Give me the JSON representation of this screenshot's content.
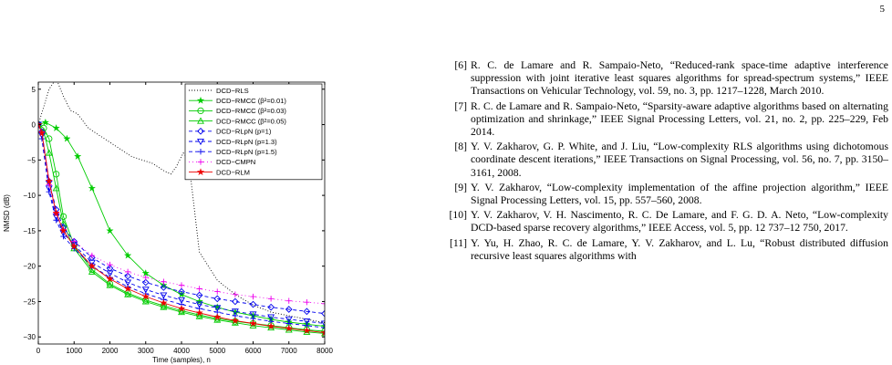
{
  "page_number": "5",
  "references": [
    {
      "num": "[6]",
      "text": "R. C. de Lamare and R. Sampaio-Neto, “Reduced-rank space-time adaptive interference suppression with joint iterative least squares algorithms for spread-spectrum systems,” IEEE Transactions on Vehicular Technology, vol. 59, no. 3, pp. 1217–1228, March 2010."
    },
    {
      "num": "[7]",
      "text": "R. C. de Lamare and R. Sampaio-Neto, “Sparsity-aware adaptive algorithms based on alternating optimization and shrinkage,” IEEE Signal Processing Letters, vol. 21, no. 2, pp. 225–229, Feb 2014."
    },
    {
      "num": "[8]",
      "text": "Y. V. Zakharov, G. P. White, and J. Liu, “Low-complexity RLS algorithms using dichotomous coordinate descent iterations,” IEEE Transactions on Signal Processing, vol. 56, no. 7, pp. 3150–3161, 2008."
    },
    {
      "num": "[9]",
      "text": "Y. V. Zakharov, “Low-complexity implementation of the affine projection algorithm,” IEEE Signal Processing Letters, vol. 15, pp. 557–560, 2008."
    },
    {
      "num": "[10]",
      "text": "Y. V. Zakharov, V. H. Nascimento, R. C. De Lamare, and F. G. D. A. Neto, “Low-complexity DCD-based sparse recovery algorithms,” IEEE Access, vol. 5, pp. 12 737–12 750, 2017."
    },
    {
      "num": "[11]",
      "text": "Y. Yu, H. Zhao, R. C. de Lamare, Y. V. Zakharov, and L. Lu, “Robust distributed diffusion recursive least squares algorithms with"
    }
  ],
  "chart_data": {
    "type": "line",
    "xlabel": "Time (samples), n",
    "ylabel": "NMSD (dB)",
    "xlim": [
      0,
      8000
    ],
    "ylim": [
      -31,
      6
    ],
    "xticks": [
      0,
      1000,
      2000,
      3000,
      4000,
      5000,
      6000,
      7000,
      8000
    ],
    "yticks": [
      5,
      0,
      -5,
      -10,
      -15,
      -20,
      -25,
      -30
    ],
    "grid": false,
    "legend_position": "top-right",
    "series": [
      {
        "name": "DCD−RLS",
        "color": "#000000",
        "dash": "1,2",
        "marker": "none",
        "x": [
          0,
          300,
          500,
          700,
          900,
          1100,
          1400,
          1700,
          2000,
          2300,
          2600,
          2900,
          3200,
          3500,
          3700,
          3850,
          3950,
          4050,
          4200,
          4500,
          5000,
          5500,
          6000,
          6500,
          7000,
          7500,
          8000
        ],
        "y": [
          0,
          5,
          6.5,
          4,
          2,
          1.5,
          -0.5,
          -1.5,
          -2.5,
          -3.5,
          -4.5,
          -5,
          -5.5,
          -6.5,
          -7,
          -6,
          -5,
          -4,
          -5,
          -18,
          -22,
          -24,
          -25.5,
          -26.5,
          -27,
          -27.5,
          -28
        ]
      },
      {
        "name": "DCD−RMCC (β²=0.01)",
        "color": "#00cc00",
        "dash": "",
        "marker": "star",
        "x": [
          0,
          200,
          500,
          800,
          1100,
          1500,
          2000,
          2500,
          3000,
          3500,
          4000,
          4500,
          5000,
          5500,
          6000,
          6500,
          7000,
          7500,
          8000
        ],
        "y": [
          0,
          0.3,
          -0.5,
          -2,
          -4.5,
          -9,
          -15,
          -18.5,
          -21,
          -22.7,
          -24,
          -25,
          -25.8,
          -26.5,
          -27,
          -27.5,
          -27.9,
          -28.2,
          -28.5
        ]
      },
      {
        "name": "DCD−RMCC (β²=0.03)",
        "color": "#00cc00",
        "dash": "",
        "marker": "circle",
        "x": [
          0,
          150,
          300,
          500,
          700,
          1000,
          1500,
          2000,
          2500,
          3000,
          3500,
          4000,
          4500,
          5000,
          5500,
          6000,
          6500,
          7000,
          7500,
          8000
        ],
        "y": [
          0,
          -0.5,
          -2,
          -7,
          -13,
          -17,
          -20.5,
          -22.5,
          -23.8,
          -24.8,
          -25.6,
          -26.3,
          -26.9,
          -27.4,
          -27.8,
          -28.1,
          -28.4,
          -28.7,
          -29,
          -29.2
        ]
      },
      {
        "name": "DCD−RMCC (β²=0.05)",
        "color": "#00cc00",
        "dash": "",
        "marker": "triangle",
        "x": [
          0,
          150,
          300,
          500,
          700,
          1000,
          1500,
          2000,
          2500,
          3000,
          3500,
          4000,
          4500,
          5000,
          5500,
          6000,
          6500,
          7000,
          7500,
          8000
        ],
        "y": [
          0,
          -1,
          -4,
          -9,
          -14,
          -17.5,
          -20.8,
          -22.7,
          -24,
          -25,
          -25.8,
          -26.5,
          -27.1,
          -27.6,
          -28,
          -28.4,
          -28.7,
          -29,
          -29.3,
          -29.5
        ]
      },
      {
        "name": "DCD−RLpN (p=1)",
        "color": "#0000ee",
        "dash": "4,3",
        "marker": "diamond",
        "x": [
          0,
          100,
          300,
          500,
          700,
          1000,
          1500,
          2000,
          2500,
          3000,
          3500,
          4000,
          4500,
          5000,
          5500,
          6000,
          6500,
          7000,
          7500,
          8000
        ],
        "y": [
          0,
          -1,
          -8,
          -12,
          -14.5,
          -16.5,
          -18.8,
          -20.3,
          -21.4,
          -22.3,
          -23,
          -23.6,
          -24.1,
          -24.6,
          -25,
          -25.4,
          -25.8,
          -26.1,
          -26.4,
          -26.7
        ]
      },
      {
        "name": "DCD−RLpN (p=1.3)",
        "color": "#0000ee",
        "dash": "4,3",
        "marker": "tri-down",
        "x": [
          0,
          100,
          300,
          500,
          700,
          1000,
          1500,
          2000,
          2500,
          3000,
          3500,
          4000,
          4500,
          5000,
          5500,
          6000,
          6500,
          7000,
          7500,
          8000
        ],
        "y": [
          0,
          -1.5,
          -9,
          -13,
          -15.3,
          -17,
          -19.5,
          -21,
          -22.3,
          -23.3,
          -24.1,
          -24.8,
          -25.4,
          -25.9,
          -26.4,
          -26.8,
          -27.2,
          -27.5,
          -27.8,
          -28.1
        ]
      },
      {
        "name": "DCD−RLpN (p=1.5)",
        "color": "#0000ee",
        "dash": "4,3",
        "marker": "plus",
        "x": [
          0,
          100,
          300,
          500,
          700,
          1000,
          1500,
          2000,
          2500,
          3000,
          3500,
          4000,
          4500,
          5000,
          5500,
          6000,
          6500,
          7000,
          7500,
          8000
        ],
        "y": [
          0,
          -2,
          -9.5,
          -13.5,
          -15.8,
          -17.5,
          -20,
          -21.6,
          -22.9,
          -23.9,
          -24.7,
          -25.4,
          -26,
          -26.5,
          -27,
          -27.4,
          -27.8,
          -28.1,
          -28.4,
          -28.7
        ]
      },
      {
        "name": "DCD−CMPN",
        "color": "#ee00ee",
        "dash": "1,3",
        "marker": "plus",
        "x": [
          0,
          100,
          300,
          500,
          700,
          1000,
          1500,
          2000,
          2500,
          3000,
          3500,
          4000,
          4500,
          5000,
          5500,
          6000,
          6500,
          7000,
          7500,
          8000
        ],
        "y": [
          0,
          -1,
          -8.5,
          -12.5,
          -14.8,
          -16.5,
          -18.5,
          -19.8,
          -20.8,
          -21.6,
          -22.2,
          -22.7,
          -23.2,
          -23.6,
          -24,
          -24.3,
          -24.6,
          -24.9,
          -25.1,
          -25.3
        ]
      },
      {
        "name": "DCD−RLM",
        "color": "#ee0000",
        "dash": "",
        "marker": "star",
        "x": [
          0,
          100,
          300,
          500,
          700,
          1000,
          1500,
          2000,
          2500,
          3000,
          3500,
          4000,
          4500,
          5000,
          5500,
          6000,
          6500,
          7000,
          7500,
          8000
        ],
        "y": [
          0,
          -1.2,
          -8,
          -12.5,
          -15,
          -17.2,
          -20,
          -21.8,
          -23.2,
          -24.3,
          -25.2,
          -26,
          -26.6,
          -27.2,
          -27.7,
          -28.1,
          -28.5,
          -28.8,
          -29.1,
          -29.4
        ]
      }
    ]
  }
}
